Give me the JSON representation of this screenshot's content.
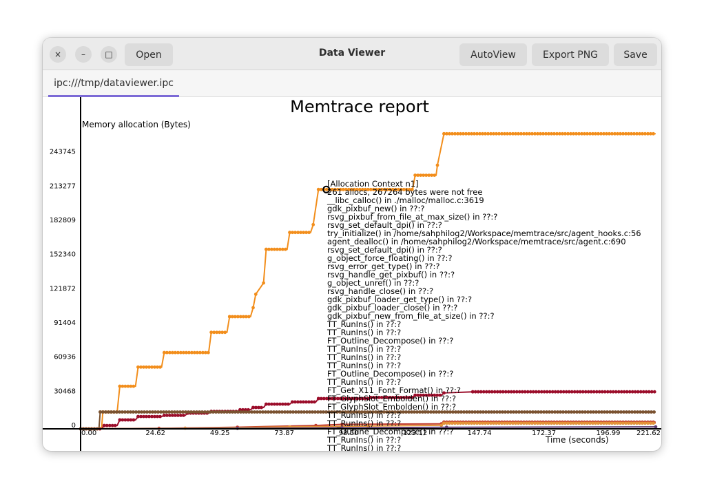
{
  "window": {
    "title": "Data Viewer",
    "buttons": {
      "open": "Open",
      "autoview": "AutoView",
      "export_png": "Export PNG",
      "save": "Save"
    },
    "controls": {
      "close": "×",
      "minimize": "–",
      "maximize": "□"
    }
  },
  "tab": {
    "label": "ipc:///tmp/dataviewer.ipc"
  },
  "chart_data": {
    "type": "line",
    "title": "Memtrace report",
    "ylabel": "Memory allocation (Bytes)",
    "xlabel": "Time (seconds)",
    "xlim": [
      0,
      221.62
    ],
    "ylim": [
      0,
      274213
    ],
    "x_ticks": [
      "0.00",
      "24.62",
      "49.25",
      "73.87",
      "98.50",
      "123.12",
      "147.74",
      "172.37",
      "196.99",
      "221.62"
    ],
    "y_ticks": [
      "0",
      "30468",
      "60936",
      "91404",
      "121872",
      "152340",
      "182809",
      "213277",
      "243745"
    ],
    "series": [
      {
        "color": "#f28e1c",
        "x": [
          0,
          8,
          8.5,
          14,
          15,
          21,
          22,
          31,
          32,
          49,
          50,
          56,
          57,
          65,
          66,
          67,
          70,
          71,
          79,
          80,
          88,
          89,
          91,
          127,
          128,
          136,
          136.5,
          139,
          220
        ],
        "y": [
          0,
          0,
          15000,
          15000,
          38000,
          38000,
          55000,
          55000,
          68000,
          68000,
          86000,
          86000,
          100000,
          100000,
          108000,
          120000,
          130000,
          160000,
          160000,
          175000,
          175000,
          182000,
          213277,
          213277,
          226000,
          226000,
          235000,
          263000,
          263000
        ]
      },
      {
        "color": "#9b0d2a",
        "x": [
          0,
          8,
          9,
          14,
          15,
          21,
          22,
          31,
          32,
          40,
          41,
          49,
          50,
          60,
          61,
          65,
          66,
          70,
          71,
          80,
          81,
          90,
          91,
          110,
          111,
          127,
          128,
          138,
          139,
          150,
          220
        ],
        "y": [
          0,
          0,
          3000,
          3000,
          8000,
          8000,
          11000,
          11000,
          12000,
          12000,
          14000,
          14000,
          15500,
          15500,
          17000,
          17000,
          19000,
          19000,
          22000,
          22000,
          24000,
          24000,
          27000,
          27000,
          28000,
          28000,
          30000,
          30000,
          32000,
          33000,
          33000
        ]
      },
      {
        "color": "#7a5230",
        "x": [
          0,
          7,
          7.5,
          220
        ],
        "y": [
          0,
          0,
          15000,
          15000
        ]
      },
      {
        "color": "#c0392b",
        "x": [
          0,
          30,
          60,
          90,
          100,
          138,
          139,
          220
        ],
        "y": [
          0,
          500,
          1500,
          3000,
          4000,
          4500,
          6000,
          6000
        ]
      },
      {
        "color": "#e4943a",
        "x": [
          0,
          40,
          80,
          110,
          138,
          139,
          220
        ],
        "y": [
          0,
          600,
          1800,
          2500,
          3200,
          5000,
          5000
        ]
      },
      {
        "color": "#5a3a70",
        "x": [
          0,
          60,
          100,
          140,
          220
        ],
        "y": [
          0,
          400,
          900,
          1400,
          1800
        ]
      }
    ],
    "highlight": {
      "x": 94,
      "y": 213277
    },
    "tooltip": [
      "[Allocation Context n1]",
      "261 allocs, 267264 bytes were not free",
      "__libc_calloc() in ./malloc/malloc.c:3619",
      "gdk_pixbuf_new() in ??:?",
      "rsvg_pixbuf_from_file_at_max_size() in ??:?",
      "rsvg_set_default_dpi() in ??:?",
      "try_initialize() in /home/sahphilog2/Workspace/memtrace/src/agent_hooks.c:56",
      "agent_dealloc() in /home/sahphilog2/Workspace/memtrace/src/agent.c:690",
      "rsvg_set_default_dpi() in ??:?",
      "g_object_force_floating() in ??:?",
      "rsvg_error_get_type() in ??:?",
      "rsvg_handle_get_pixbuf() in ??:?",
      "g_object_unref() in ??:?",
      "rsvg_handle_close() in ??:?",
      "gdk_pixbuf_loader_get_type() in ??:?",
      "gdk_pixbuf_loader_close() in ??:?",
      "gdk_pixbuf_new_from_file_at_size() in ??:?",
      "TT_RunIns() in ??:?",
      "TT_RunIns() in ??:?",
      "FT_Outline_Decompose() in ??:?",
      "TT_RunIns() in ??:?",
      "TT_RunIns() in ??:?",
      "TT_RunIns() in ??:?",
      "FT_Outline_Decompose() in ??:?",
      "TT_RunIns() in ??:?",
      "FT_Get_X11_Font_Format() in ??:?",
      "FT_GlyphSlot_Embolden() in ??:?",
      "FT_GlyphSlot_Embolden() in ??:?",
      "TT_RunIns() in ??:?",
      "TT_RunIns() in ??:?",
      "FT_Outline_Decompose() in ??:?",
      "TT_RunIns() in ??:?",
      "TT_RunIns() in ??:?"
    ]
  }
}
